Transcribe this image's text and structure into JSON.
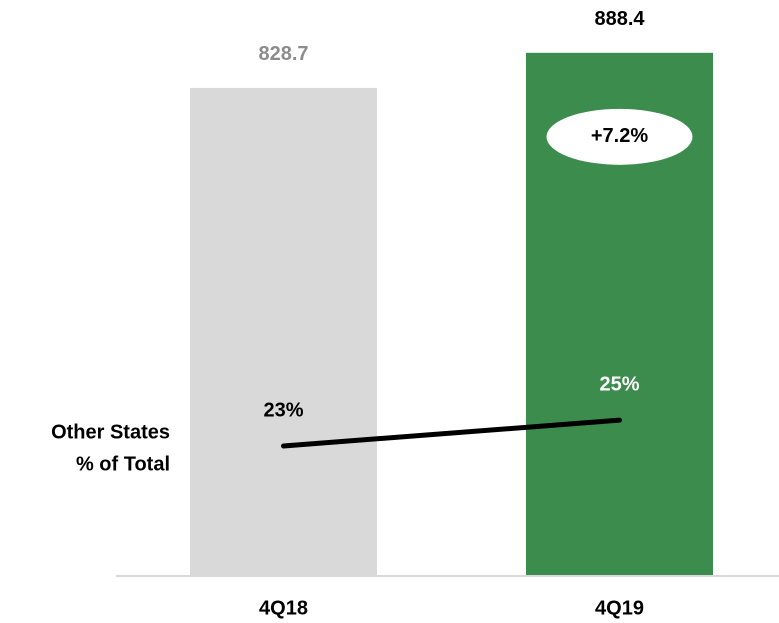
{
  "chart_data": {
    "type": "bar",
    "categories": [
      "4Q18",
      "4Q19"
    ],
    "values": [
      828.7,
      888.4
    ],
    "colors": [
      "#d9d9d9",
      "#3b8c4d"
    ],
    "value_label_colors": [
      "#8c8c8c",
      "#000000"
    ],
    "ylim": [
      0,
      900
    ],
    "annotation": "+7.2%",
    "line": {
      "type": "line",
      "name": [
        "Other States",
        "% of Total"
      ],
      "values": [
        23,
        25
      ],
      "value_labels": [
        "23%",
        "25%"
      ],
      "label_colors": [
        "#000000",
        "#ffffff"
      ],
      "color": "#000000",
      "axis": "y2"
    },
    "y2lim": [
      13,
      54
    ]
  }
}
